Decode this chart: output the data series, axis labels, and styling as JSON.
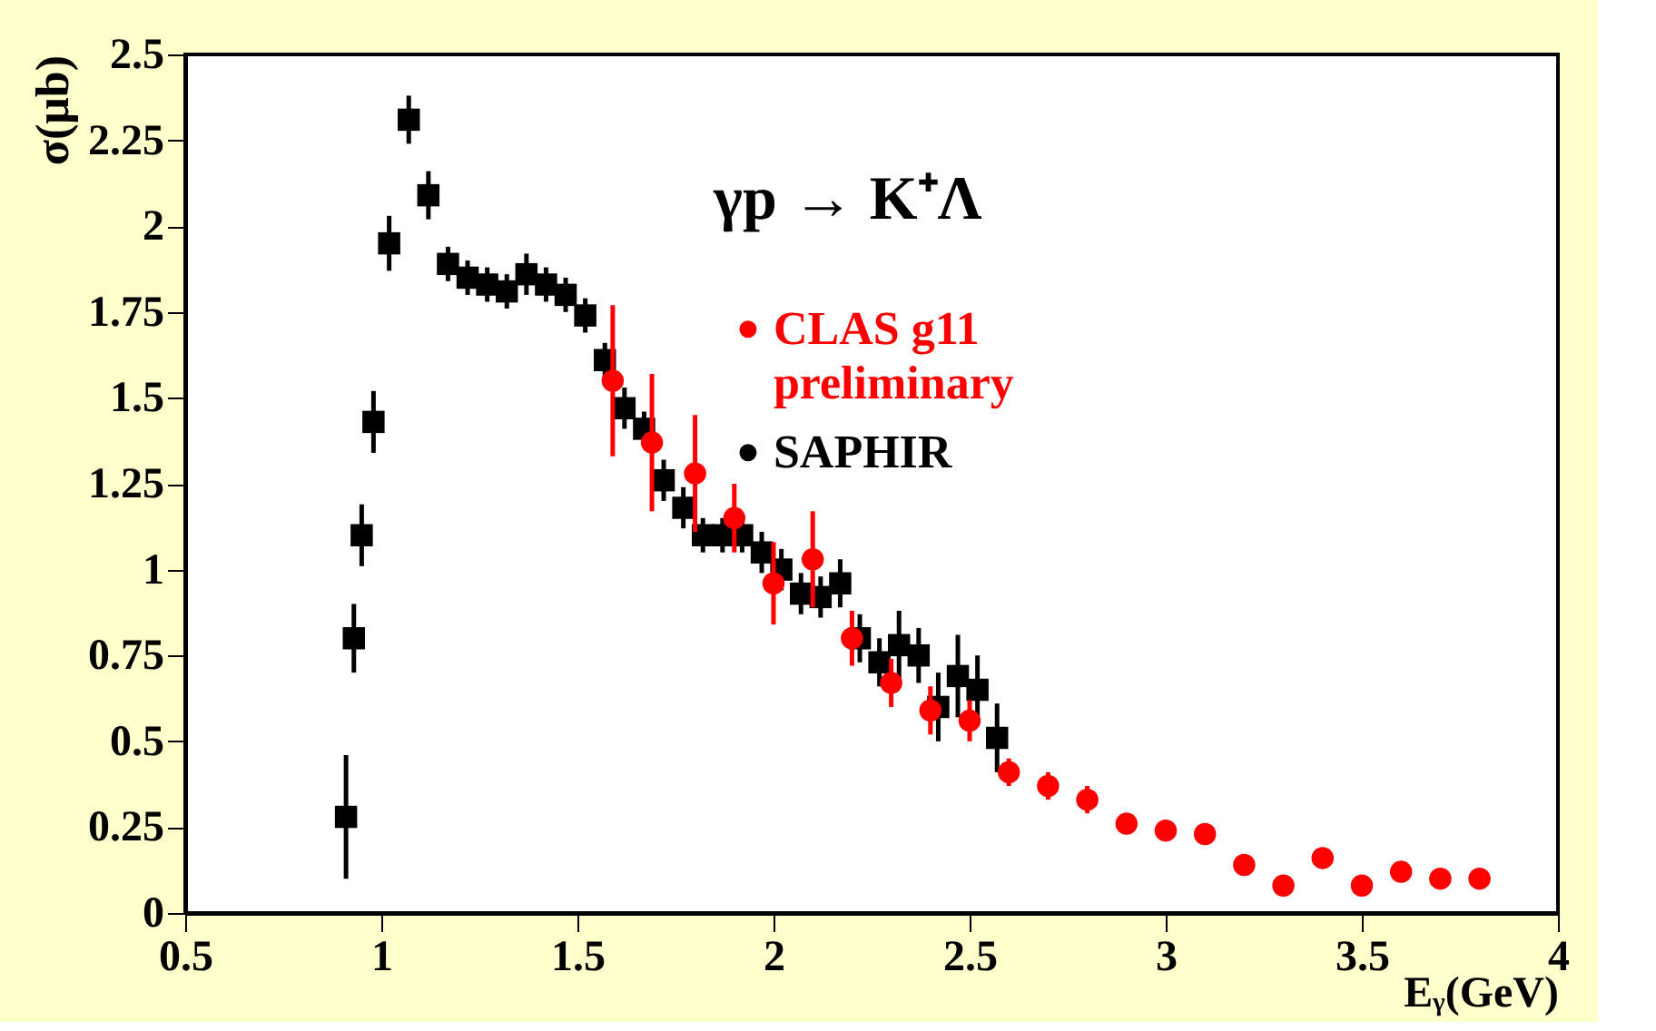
{
  "chart_data": {
    "type": "scatter",
    "title": "γp → K⁺Λ",
    "xlabel": "Eᵧ(GeV)",
    "ylabel": "σ(μb)",
    "xlim": [
      0.5,
      4
    ],
    "xticks": [
      0.5,
      1,
      1.5,
      2,
      2.5,
      3,
      3.5,
      4
    ],
    "ylim": [
      0,
      2.5
    ],
    "yticks": [
      0,
      0.25,
      0.5,
      0.75,
      1,
      1.25,
      1.5,
      1.75,
      2,
      2.25,
      2.5
    ],
    "grid": false,
    "legend": "top right",
    "series": [
      {
        "name": "CLAS g11\npreliminary",
        "color": "#ff0000",
        "marker": "circle",
        "x": [
          1.59,
          1.69,
          1.8,
          1.9,
          2.0,
          2.1,
          2.2,
          2.3,
          2.4,
          2.5,
          2.6,
          2.7,
          2.8,
          2.9,
          3.0,
          3.1,
          3.2,
          3.3,
          3.4,
          3.5,
          3.6,
          3.7,
          3.8
        ],
        "values": [
          1.55,
          1.37,
          1.28,
          1.15,
          0.96,
          1.03,
          0.8,
          0.67,
          0.59,
          0.56,
          0.41,
          0.37,
          0.33,
          0.26,
          0.24,
          0.23,
          0.14,
          0.08,
          0.16,
          0.08,
          0.12,
          0.1,
          0.1
        ],
        "errors": [
          0.22,
          0.2,
          0.17,
          0.1,
          0.12,
          0.14,
          0.08,
          0.07,
          0.07,
          0.06,
          0.04,
          0.04,
          0.04,
          0.03,
          0.03,
          0.03,
          0.02,
          0.02,
          0.03,
          0.02,
          0.02,
          0.02,
          0.02
        ]
      },
      {
        "name": "SAPHIR",
        "color": "#000000",
        "marker": "square",
        "x": [
          0.91,
          0.93,
          0.95,
          0.98,
          1.02,
          1.07,
          1.12,
          1.17,
          1.22,
          1.27,
          1.32,
          1.37,
          1.42,
          1.47,
          1.52,
          1.57,
          1.62,
          1.67,
          1.72,
          1.77,
          1.82,
          1.87,
          1.92,
          1.97,
          2.02,
          2.07,
          2.12,
          2.17,
          2.22,
          2.27,
          2.32,
          2.37,
          2.42,
          2.47,
          2.52,
          2.57
        ],
        "values": [
          0.28,
          0.8,
          1.1,
          1.43,
          1.95,
          2.31,
          2.09,
          1.89,
          1.85,
          1.83,
          1.81,
          1.86,
          1.83,
          1.8,
          1.74,
          1.61,
          1.47,
          1.41,
          1.26,
          1.18,
          1.1,
          1.1,
          1.1,
          1.05,
          1.0,
          0.93,
          0.92,
          0.96,
          0.8,
          0.73,
          0.78,
          0.75,
          0.6,
          0.69,
          0.65,
          0.51
        ],
        "errors": [
          0.18,
          0.1,
          0.09,
          0.09,
          0.08,
          0.07,
          0.07,
          0.05,
          0.05,
          0.05,
          0.05,
          0.06,
          0.05,
          0.05,
          0.05,
          0.05,
          0.06,
          0.05,
          0.06,
          0.06,
          0.05,
          0.05,
          0.05,
          0.06,
          0.06,
          0.06,
          0.06,
          0.07,
          0.07,
          0.07,
          0.1,
          0.08,
          0.1,
          0.12,
          0.1,
          0.1
        ]
      }
    ]
  }
}
